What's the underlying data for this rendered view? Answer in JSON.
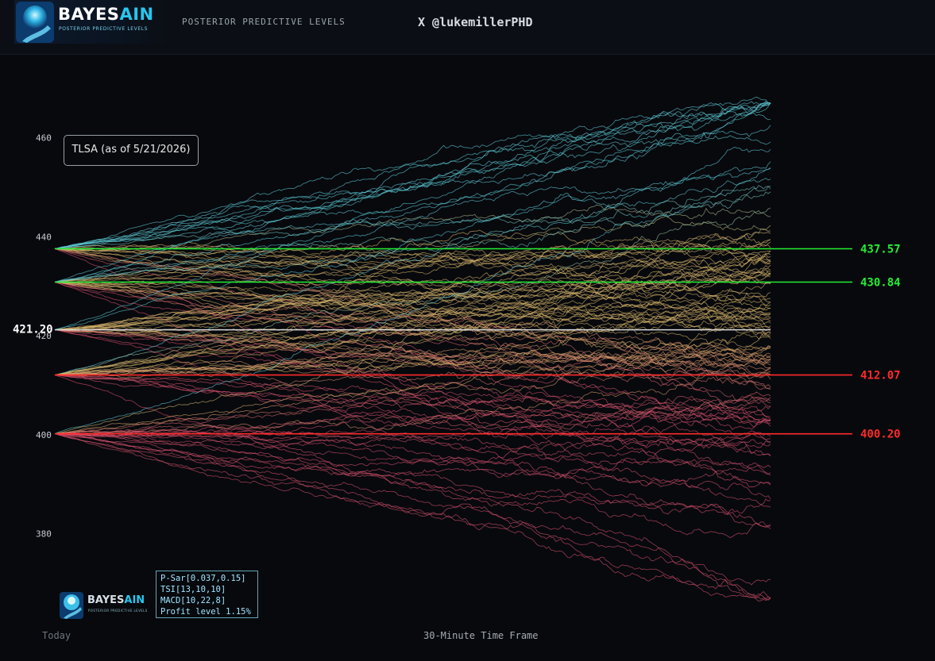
{
  "header": {
    "brand": {
      "name_main": "BAYES",
      "name_accent": "AIN",
      "tagline": "POSTERIOR PREDICTIVE LEVELS"
    },
    "subtitle": "POSTERIOR PREDICTIVE LEVELS",
    "handle": "X @lukemillerPHD"
  },
  "legend": {
    "label": "TLSA (as of 5/21/2026)"
  },
  "indicators": [
    "P-Sar[0.037,0.15]",
    "TSI[13,10,10]",
    "MACD[10,22,8]",
    "Profit level 1.15%"
  ],
  "watermark": {
    "name_main": "BAYES",
    "name_accent": "AIN",
    "tagline": "POSTERIOR PREDICTIVE LEVELS"
  },
  "chart_data": {
    "type": "line",
    "xlabel": "30-Minute Time Frame",
    "x_start_label": "Today",
    "ylim": [
      366,
      475
    ],
    "y_ticks": [
      380,
      400,
      420,
      440,
      460
    ],
    "current_price": {
      "value": 421.2,
      "label": "421.20",
      "color": "#ffffff"
    },
    "levels": [
      {
        "value": 437.57,
        "label": "437.57",
        "color": "#22ee33"
      },
      {
        "value": 430.84,
        "label": "430.84",
        "color": "#22ee33"
      },
      {
        "value": 412.07,
        "label": "412.07",
        "color": "#ff2a2a"
      },
      {
        "value": 400.2,
        "label": "400.20",
        "color": "#ff2a2a"
      }
    ],
    "simulated_paths": {
      "origins": [
        437.57,
        430.84,
        421.2,
        412.07,
        400.2
      ],
      "paths_per_origin": 26,
      "steps": 300,
      "end_range": [
        367,
        467
      ],
      "colors": {
        "high": "#5ecbd6",
        "mid": "#d9b56b",
        "low": "#d6506e"
      }
    },
    "grid": false
  }
}
